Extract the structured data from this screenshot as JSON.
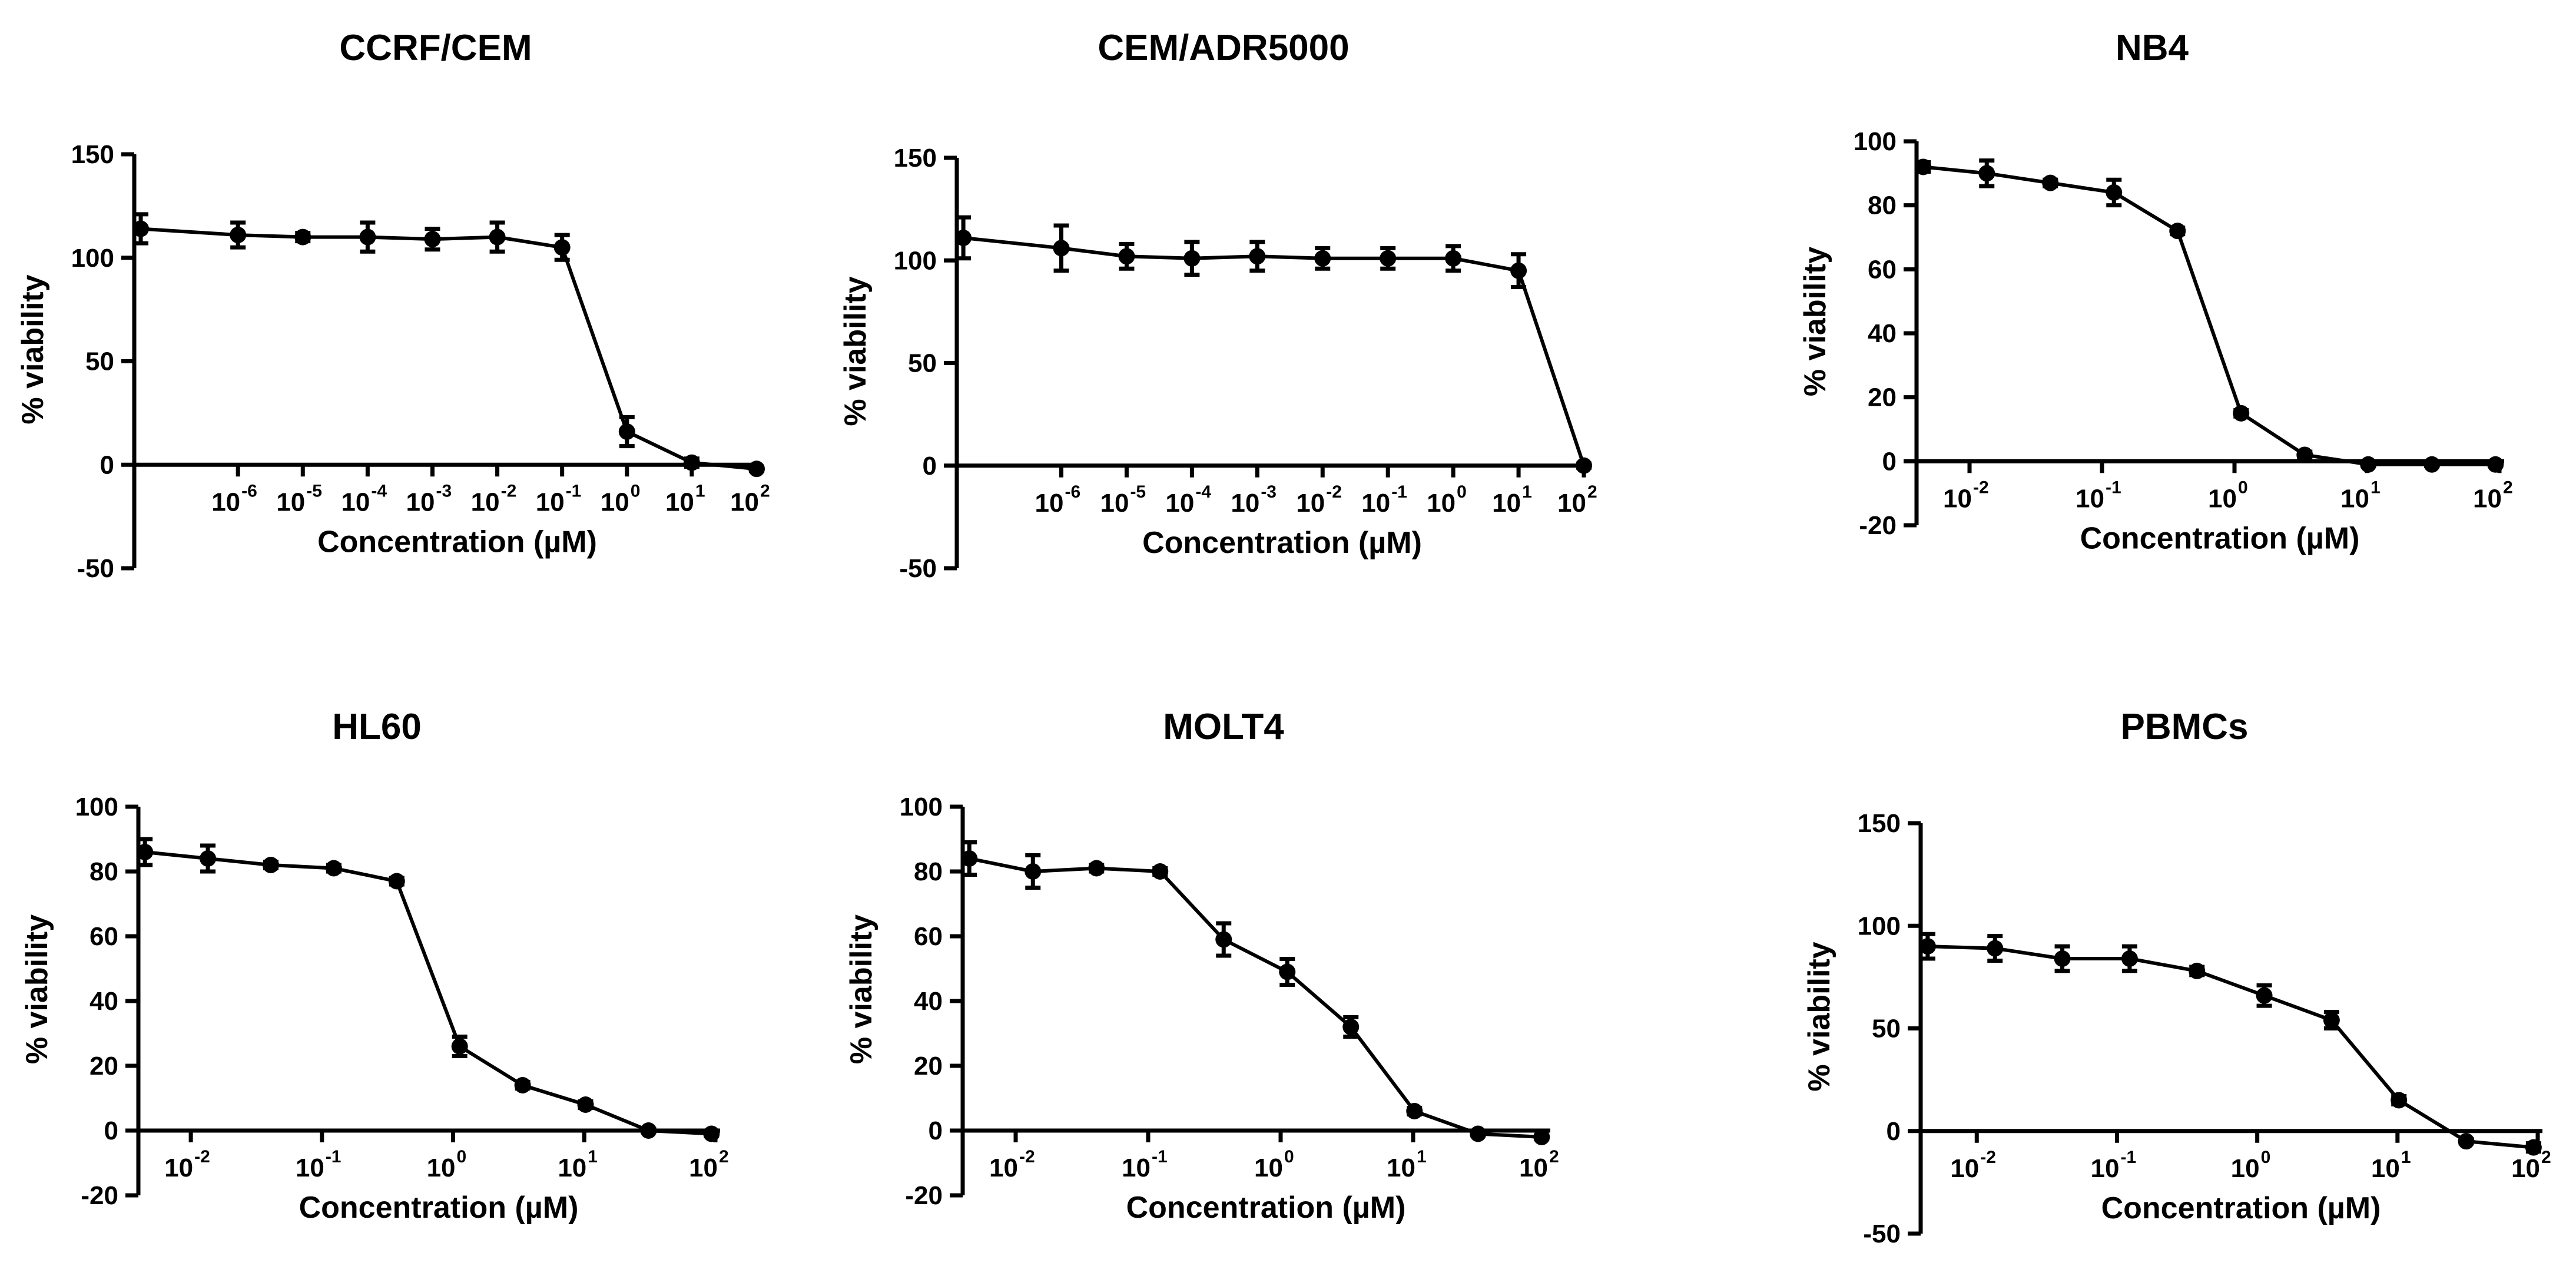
{
  "figure": {
    "background": "#ffffff",
    "color": "#000000"
  },
  "chart_data": [
    {
      "type": "line",
      "title": "CCRF/CEM",
      "xlabel": "Concentration (µM)",
      "ylabel": "% viability",
      "x_scale": "log10",
      "ylim": [
        -50,
        150
      ],
      "yticks": [
        -50,
        0,
        50,
        100,
        150
      ],
      "xlim_exp": [
        -7.6,
        2
      ],
      "xticks_exp": [
        -6,
        -5,
        -4,
        -3,
        -2,
        -1,
        0,
        1,
        2
      ],
      "series": [
        {
          "name": "CCRF/CEM",
          "log10_x": [
            -7.5,
            -6,
            -5,
            -4,
            -3,
            -2,
            -1,
            0,
            1,
            2
          ],
          "y": [
            114,
            111,
            110,
            110,
            109,
            110,
            105,
            16,
            1,
            -2
          ],
          "err": [
            7,
            6,
            2,
            7,
            5,
            7,
            6,
            7,
            2,
            1
          ]
        }
      ]
    },
    {
      "type": "line",
      "title": "CEM/ADR5000",
      "xlabel": "Concentration (µM)",
      "ylabel": "% viability",
      "x_scale": "log10",
      "ylim": [
        -50,
        150
      ],
      "yticks": [
        -50,
        0,
        50,
        100,
        150
      ],
      "xlim_exp": [
        -7.6,
        2
      ],
      "xticks_exp": [
        -6,
        -5,
        -4,
        -3,
        -2,
        -1,
        0,
        1,
        2
      ],
      "series": [
        {
          "name": "CEM/ADR5000",
          "log10_x": [
            -7.5,
            -6,
            -5,
            -4,
            -3,
            -2,
            -1,
            0,
            1,
            2
          ],
          "y": [
            111,
            106,
            102,
            101,
            102,
            101,
            101,
            101,
            95,
            0
          ],
          "err": [
            10,
            11,
            6,
            8,
            7,
            5,
            5,
            6,
            8,
            1
          ]
        }
      ]
    },
    {
      "type": "line",
      "title": "NB4",
      "xlabel": "Concentration (µM)",
      "ylabel": "% viability",
      "x_scale": "log10",
      "ylim": [
        -20,
        100
      ],
      "yticks": [
        -20,
        0,
        20,
        40,
        60,
        80,
        100
      ],
      "xlim_exp": [
        -2.4,
        2
      ],
      "xticks_exp": [
        -2,
        -1,
        0,
        1,
        2
      ],
      "series": [
        {
          "name": "NB4",
          "log10_x": [
            -2.35,
            -1.87,
            -1.39,
            -0.91,
            -0.43,
            0.05,
            0.53,
            1.01,
            1.49,
            1.97
          ],
          "y": [
            92,
            90,
            87,
            84,
            72,
            15,
            2,
            -1,
            -1,
            -1
          ],
          "err": [
            1.5,
            4,
            1,
            4,
            1,
            1,
            1,
            0.5,
            0.5,
            0.5
          ]
        }
      ]
    },
    {
      "type": "line",
      "title": "HL60",
      "xlabel": "Concentration (µM)",
      "ylabel": "% viability",
      "x_scale": "log10",
      "ylim": [
        -20,
        100
      ],
      "yticks": [
        -20,
        0,
        20,
        40,
        60,
        80,
        100
      ],
      "xlim_exp": [
        -2.4,
        2
      ],
      "xticks_exp": [
        -2,
        -1,
        0,
        1,
        2
      ],
      "series": [
        {
          "name": "HL60",
          "log10_x": [
            -2.35,
            -1.87,
            -1.39,
            -0.91,
            -0.43,
            0.05,
            0.53,
            1.01,
            1.49,
            1.97
          ],
          "y": [
            86,
            84,
            82,
            81,
            77,
            26,
            14,
            8,
            0,
            -1
          ],
          "err": [
            4,
            4,
            1,
            1,
            1,
            3,
            1,
            1,
            0.5,
            0.5
          ]
        }
      ]
    },
    {
      "type": "line",
      "title": "MOLT4",
      "xlabel": "Concentration (µM)",
      "ylabel": "% viability",
      "x_scale": "log10",
      "ylim": [
        -20,
        100
      ],
      "yticks": [
        -20,
        0,
        20,
        40,
        60,
        80,
        100
      ],
      "xlim_exp": [
        -2.4,
        2
      ],
      "xticks_exp": [
        -2,
        -1,
        0,
        1,
        2
      ],
      "series": [
        {
          "name": "MOLT4",
          "log10_x": [
            -2.35,
            -1.87,
            -1.39,
            -0.91,
            -0.43,
            0.05,
            0.53,
            1.01,
            1.49,
            1.97
          ],
          "y": [
            84,
            80,
            81,
            80,
            59,
            49,
            32,
            6,
            -1,
            -2
          ],
          "err": [
            5,
            5,
            1,
            1,
            5,
            4,
            3,
            1,
            0.5,
            0.5
          ]
        }
      ]
    },
    {
      "type": "line",
      "title": "PBMCs",
      "xlabel": "Concentration (µM)",
      "ylabel": "% viability",
      "x_scale": "log10",
      "ylim": [
        -50,
        150
      ],
      "yticks": [
        -50,
        0,
        50,
        100,
        150
      ],
      "xlim_exp": [
        -2.4,
        2
      ],
      "xticks_exp": [
        -2,
        -1,
        0,
        1,
        2
      ],
      "series": [
        {
          "name": "PBMCs",
          "log10_x": [
            -2.35,
            -1.87,
            -1.39,
            -0.91,
            -0.43,
            0.05,
            0.53,
            1.01,
            1.49,
            1.97
          ],
          "y": [
            90,
            89,
            84,
            84,
            78,
            66,
            54,
            15,
            -5,
            -8
          ],
          "err": [
            6,
            6,
            6,
            6,
            2,
            5,
            4,
            2,
            1,
            2
          ]
        }
      ]
    }
  ]
}
